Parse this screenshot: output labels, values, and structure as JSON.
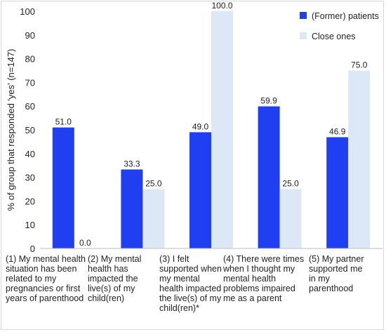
{
  "chart_data": {
    "type": "bar",
    "ylabel": "% of group that responded 'yes' (n=147)",
    "ylim": [
      0,
      100
    ],
    "yticks": [
      "0",
      "10",
      "20",
      "30",
      "40",
      "50",
      "60",
      "70",
      "80",
      "90",
      "100"
    ],
    "categories": [
      "(1) My mental health\nsituation has been\nrelated to my\npregnancies or first\nyears of parenthood",
      "(2) My mental\nhealth has\nimpacted the\nlive(s) of my\nchild(ren)",
      "(3) I felt\nsupported when\nmy mental\nhealth impacted\nthe live(s) of my\nchild(ren)*",
      "(4) There were times\nwhen I thought my\nmental health\nproblems impaired\nme as a parent",
      "(5) My partner\nsupported me\nin my\nparenthood"
    ],
    "series": [
      {
        "name": "(Former) patients",
        "color": "#1f3ff0",
        "values": [
          51.0,
          33.3,
          49.0,
          59.9,
          46.9
        ],
        "labels": [
          "51.0",
          "33.3",
          "49.0",
          "59.9",
          "46.9"
        ]
      },
      {
        "name": "Close ones",
        "color": "#dce8f6",
        "values": [
          0.0,
          25.0,
          100.0,
          25.0,
          75.0
        ],
        "labels": [
          "0.0",
          "25.0",
          "100.0",
          "25.0",
          "75.0"
        ]
      }
    ],
    "legend": "top-right",
    "grid": false
  }
}
